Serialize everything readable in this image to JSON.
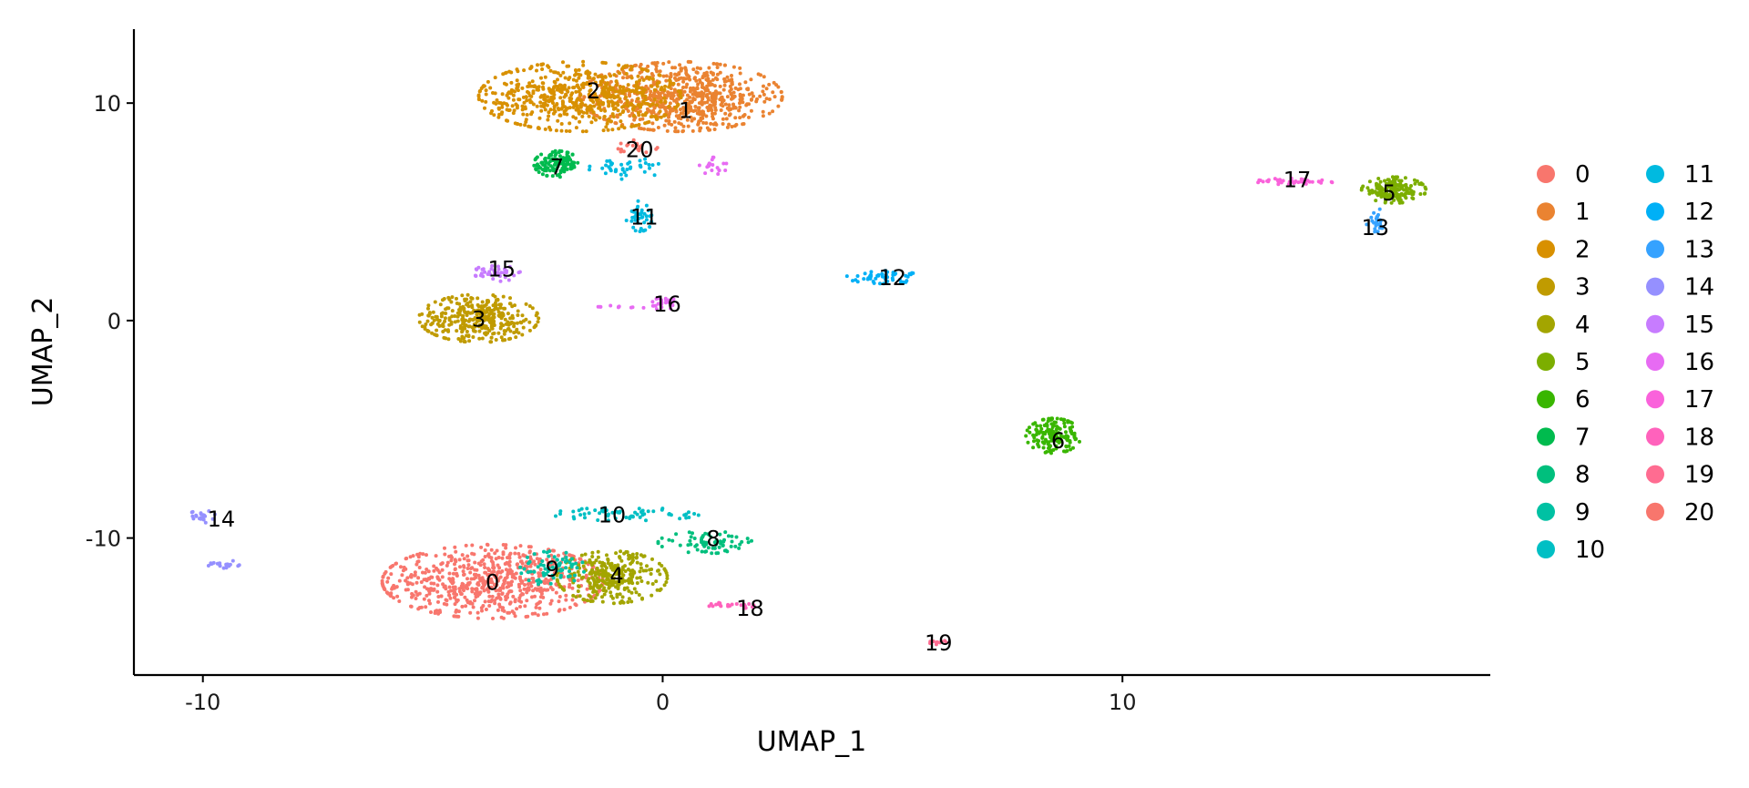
{
  "chart_data": {
    "type": "scatter",
    "title": "",
    "xlabel": "UMAP_1",
    "ylabel": "UMAP_2",
    "xlim": [
      -11.5,
      18
    ],
    "ylim": [
      -16.3,
      13.4
    ],
    "x_ticks": [
      -10,
      0,
      10
    ],
    "x_tick_labels": [
      "-10",
      "0",
      "10"
    ],
    "y_ticks": [
      10,
      0,
      -10
    ],
    "y_tick_labels": [
      "10",
      "0",
      "-10"
    ],
    "grid": false,
    "legend_position": "right",
    "legend_columns": 2,
    "series": [
      {
        "name": "0",
        "color": "#F8766D",
        "label_pos": [
          -3.7,
          -12.0
        ],
        "clusters": [
          {
            "cx": -3.7,
            "cy": -12.0,
            "rx": 2.4,
            "ry": 1.7,
            "n": 700
          }
        ]
      },
      {
        "name": "1",
        "color": "#EA8331",
        "label_pos": [
          0.5,
          9.7
        ],
        "clusters": [
          {
            "cx": 0.4,
            "cy": 10.3,
            "rx": 2.2,
            "ry": 1.6,
            "n": 700
          }
        ]
      },
      {
        "name": "2",
        "color": "#D89000",
        "label_pos": [
          -1.5,
          10.6
        ],
        "clusters": [
          {
            "cx": -1.8,
            "cy": 10.3,
            "rx": 2.2,
            "ry": 1.6,
            "n": 600
          }
        ]
      },
      {
        "name": "3",
        "color": "#C09B00",
        "label_pos": [
          -4.0,
          0.1
        ],
        "clusters": [
          {
            "cx": -4.0,
            "cy": 0.1,
            "rx": 1.3,
            "ry": 1.1,
            "n": 350
          }
        ]
      },
      {
        "name": "4",
        "color": "#A3A500",
        "label_pos": [
          -1.0,
          -11.7
        ],
        "clusters": [
          {
            "cx": -1.1,
            "cy": -11.8,
            "rx": 1.2,
            "ry": 1.2,
            "n": 300
          }
        ]
      },
      {
        "name": "5",
        "color": "#7CAE00",
        "label_pos": [
          15.8,
          5.9
        ],
        "clusters": [
          {
            "cx": 15.9,
            "cy": 6.0,
            "rx": 0.7,
            "ry": 0.6,
            "n": 160
          }
        ]
      },
      {
        "name": "6",
        "color": "#39B600",
        "label_pos": [
          8.6,
          -5.5
        ],
        "clusters": [
          {
            "cx": 8.5,
            "cy": -5.3,
            "rx": 0.6,
            "ry": 0.8,
            "n": 160
          }
        ]
      },
      {
        "name": "7",
        "color": "#00BB4E",
        "label_pos": [
          -2.3,
          7.1
        ],
        "clusters": [
          {
            "cx": -2.3,
            "cy": 7.2,
            "rx": 0.5,
            "ry": 0.6,
            "n": 120
          }
        ]
      },
      {
        "name": "8",
        "color": "#00BF7D",
        "label_pos": [
          1.1,
          -10.0
        ],
        "clusters": [
          {
            "cx": 1.0,
            "cy": -10.2,
            "rx": 1.1,
            "ry": 0.5,
            "n": 70
          }
        ]
      },
      {
        "name": "9",
        "color": "#00C1A3",
        "label_pos": [
          -2.4,
          -11.4
        ],
        "clusters": [
          {
            "cx": -2.4,
            "cy": -11.4,
            "rx": 0.7,
            "ry": 0.8,
            "n": 70
          }
        ]
      },
      {
        "name": "10",
        "color": "#00BFC4",
        "label_pos": [
          -1.1,
          -8.9
        ],
        "clusters": [
          {
            "cx": -0.8,
            "cy": -8.9,
            "rx": 1.6,
            "ry": 0.3,
            "n": 60
          }
        ]
      },
      {
        "name": "11",
        "color": "#00BAE0",
        "label_pos": [
          -0.4,
          4.8
        ],
        "clusters": [
          {
            "cx": -0.5,
            "cy": 4.8,
            "rx": 0.3,
            "ry": 0.7,
            "n": 40
          },
          {
            "cx": -0.8,
            "cy": 7.0,
            "rx": 0.8,
            "ry": 0.5,
            "n": 40
          }
        ]
      },
      {
        "name": "12",
        "color": "#00B0F6",
        "label_pos": [
          5.0,
          2.0
        ],
        "clusters": [
          {
            "cx": 4.8,
            "cy": 2.0,
            "rx": 0.8,
            "ry": 0.3,
            "n": 50
          }
        ]
      },
      {
        "name": "13",
        "color": "#35A2FF",
        "label_pos": [
          15.5,
          4.3
        ],
        "clusters": [
          {
            "cx": 15.5,
            "cy": 4.6,
            "rx": 0.2,
            "ry": 0.6,
            "n": 30
          }
        ]
      },
      {
        "name": "14",
        "color": "#9590FF",
        "label_pos": [
          -9.6,
          -9.1
        ],
        "clusters": [
          {
            "cx": -10.0,
            "cy": -9.0,
            "rx": 0.3,
            "ry": 0.3,
            "n": 20
          },
          {
            "cx": -9.6,
            "cy": -11.2,
            "rx": 0.4,
            "ry": 0.2,
            "n": 20
          }
        ]
      },
      {
        "name": "15",
        "color": "#C77CFF",
        "label_pos": [
          -3.5,
          2.4
        ],
        "clusters": [
          {
            "cx": -3.6,
            "cy": 2.2,
            "rx": 0.5,
            "ry": 0.4,
            "n": 40
          }
        ]
      },
      {
        "name": "16",
        "color": "#E76BF3",
        "label_pos": [
          0.1,
          0.8
        ],
        "clusters": [
          {
            "cx": 0.0,
            "cy": 0.8,
            "rx": 0.3,
            "ry": 0.3,
            "n": 25
          },
          {
            "cx": 1.1,
            "cy": 7.1,
            "rx": 0.3,
            "ry": 0.4,
            "n": 20
          },
          {
            "cx": -1.0,
            "cy": 0.6,
            "rx": 0.8,
            "ry": 0.1,
            "n": 10
          }
        ]
      },
      {
        "name": "17",
        "color": "#FA62DB",
        "label_pos": [
          13.8,
          6.5
        ],
        "clusters": [
          {
            "cx": 13.8,
            "cy": 6.4,
            "rx": 0.9,
            "ry": 0.15,
            "n": 40
          }
        ]
      },
      {
        "name": "18",
        "color": "#FF62BC",
        "label_pos": [
          1.9,
          -13.2
        ],
        "clusters": [
          {
            "cx": 1.5,
            "cy": -13.1,
            "rx": 0.5,
            "ry": 0.15,
            "n": 25
          }
        ]
      },
      {
        "name": "19",
        "color": "#FF6C91",
        "label_pos": [
          6.0,
          -14.8
        ],
        "clusters": [
          {
            "cx": 6.0,
            "cy": -14.8,
            "rx": 0.2,
            "ry": 0.1,
            "n": 10
          }
        ]
      },
      {
        "name": "20",
        "color": "#F8766D",
        "label_pos": [
          -0.5,
          7.9
        ],
        "clusters": [
          {
            "cx": -0.6,
            "cy": 8.0,
            "rx": 0.5,
            "ry": 0.3,
            "n": 20
          }
        ]
      }
    ]
  }
}
